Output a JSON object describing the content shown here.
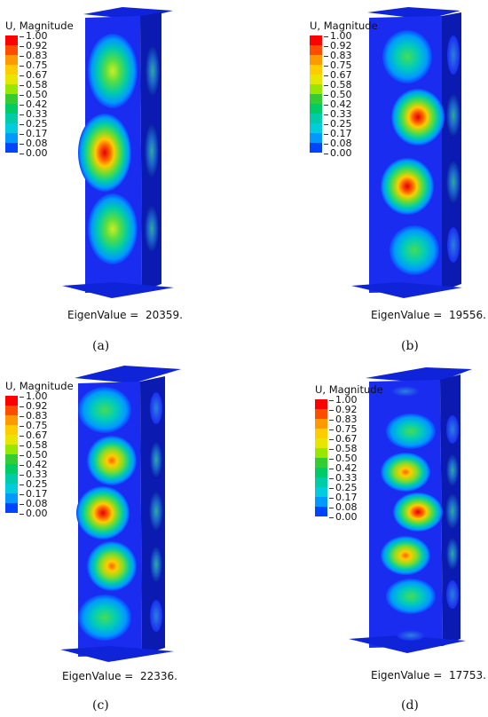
{
  "legend": {
    "title": "U, Magnitude",
    "labels": [
      "1.00",
      "0.92",
      "0.83",
      "0.75",
      "0.67",
      "0.58",
      "0.50",
      "0.42",
      "0.33",
      "0.25",
      "0.17",
      "0.08",
      "0.00"
    ],
    "colors": [
      "#ff0000",
      "#ff4d00",
      "#ff9900",
      "#ffcc00",
      "#e6e600",
      "#99e600",
      "#33cc33",
      "#00cc66",
      "#00ccaa",
      "#00ccdd",
      "#0099ff",
      "#0044ff",
      "#0000ff"
    ]
  },
  "eigen_label": "EigenValue =",
  "panels": [
    {
      "id": "a",
      "caption": "(a)",
      "eigenvalue": "20359."
    },
    {
      "id": "b",
      "caption": "(b)",
      "eigenvalue": "19556."
    },
    {
      "id": "c",
      "caption": "(c)",
      "eigenvalue": "22336."
    },
    {
      "id": "d",
      "caption": "(d)",
      "eigenvalue": "17753."
    }
  ]
}
